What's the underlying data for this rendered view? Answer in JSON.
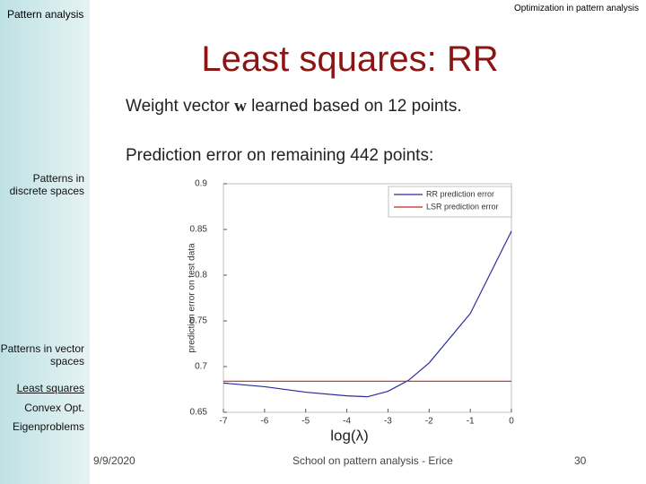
{
  "header": {
    "left": "Pattern analysis",
    "right": "Optimization in pattern analysis"
  },
  "title": "Least squares: RR",
  "text": {
    "line1": [
      "Weight vector ",
      "w",
      " learned based on 12 points."
    ],
    "line2": "Prediction error on remaining 442 points:"
  },
  "sidebar": [
    "Patterns in discrete spaces",
    "Patterns in vector spaces",
    "Least squares",
    "Convex Opt.",
    "Eigenproblems"
  ],
  "footer": {
    "date": "9/9/2020",
    "center": "School on pattern analysis - Erice",
    "page": "30"
  },
  "chart_data": {
    "type": "line",
    "xlabel": "log(λ)",
    "ylabel": "prediction error on test data",
    "xlim": [
      -7,
      0
    ],
    "ylim": [
      0.65,
      0.9
    ],
    "xticks": [
      -7,
      -6,
      -5,
      -4,
      -3,
      -2,
      -1,
      0
    ],
    "yticks": [
      0.9,
      0.85,
      0.8,
      0.75,
      0.7,
      0.65
    ],
    "legend": "upper right",
    "series": [
      {
        "name": "RR prediction error",
        "color": "#2a2a9a",
        "x": [
          -7,
          -6,
          -5,
          -4,
          -3.5,
          -3,
          -2.5,
          -2,
          -1,
          0
        ],
        "values": [
          0.682,
          0.678,
          0.672,
          0.668,
          0.667,
          0.673,
          0.685,
          0.704,
          0.758,
          0.848
        ]
      },
      {
        "name": "LSR prediction error",
        "color": "#cc2222",
        "x": [
          -7,
          0
        ],
        "values": [
          0.684,
          0.684
        ]
      }
    ]
  }
}
